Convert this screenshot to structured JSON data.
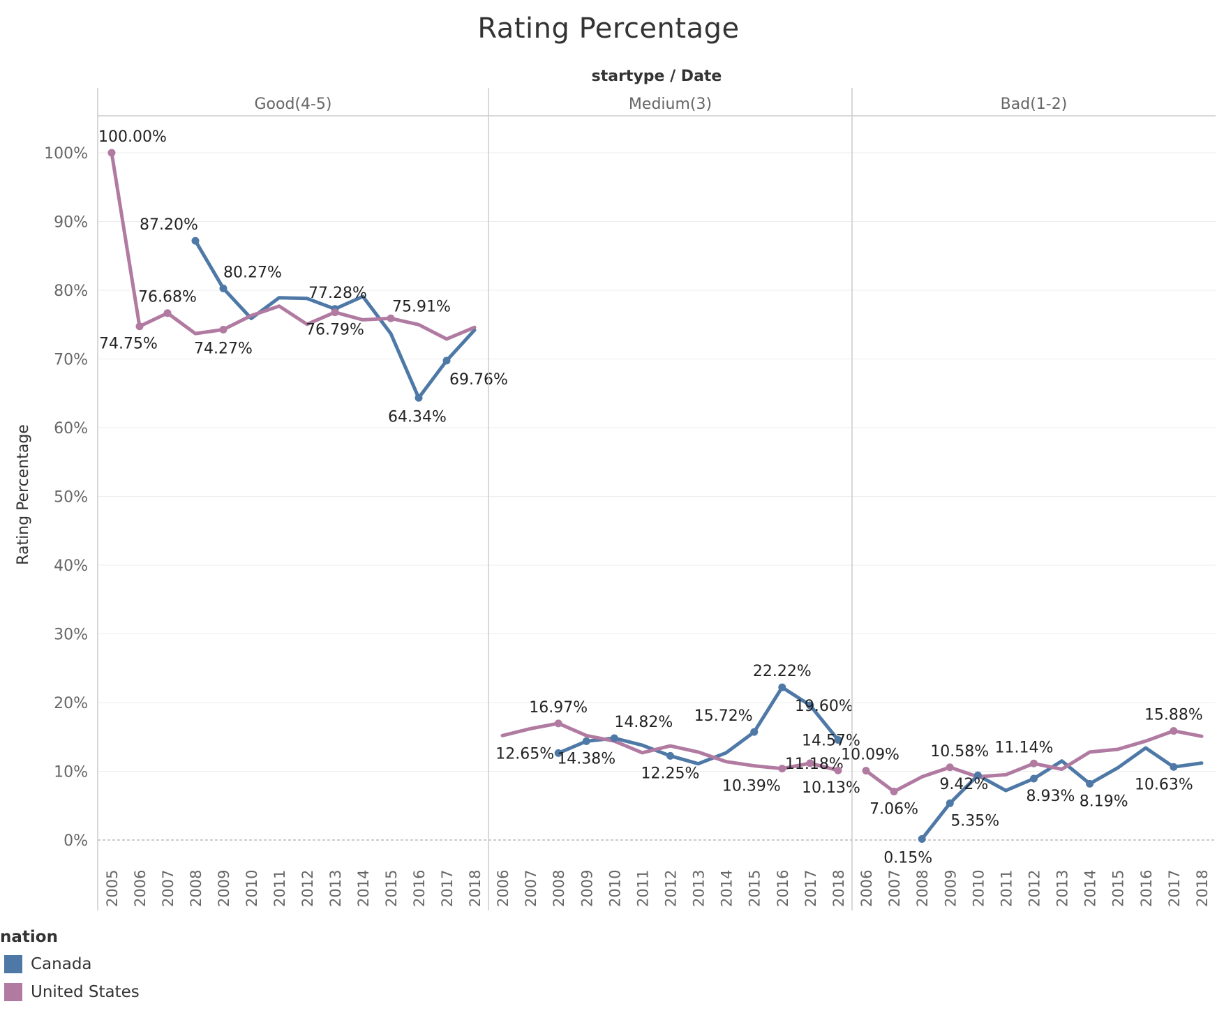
{
  "chart_data": {
    "type": "line",
    "title": "Rating Percentage",
    "column_header": "startype / Date",
    "ylabel": "Rating Percentage",
    "ylim": [
      0,
      1.05
    ],
    "y_ticks": [
      "0%",
      "10%",
      "20%",
      "30%",
      "40%",
      "50%",
      "60%",
      "70%",
      "80%",
      "90%",
      "100%"
    ],
    "legend": {
      "title": "nation",
      "position": "bottom-left"
    },
    "colors": {
      "Canada": "#4e79a7",
      "United States": "#b07aa1"
    },
    "panels": [
      {
        "name": "Good(4-5)",
        "x": [
          "2005",
          "2006",
          "2007",
          "2008",
          "2009",
          "2010",
          "2011",
          "2012",
          "2013",
          "2014",
          "2015",
          "2016",
          "2017",
          "2018"
        ],
        "series": [
          {
            "name": "Canada",
            "values": [
              null,
              null,
              null,
              0.872,
              0.8027,
              0.759,
              0.789,
              0.788,
              0.7728,
              0.791,
              0.737,
              0.6434,
              0.6976,
              0.742
            ]
          },
          {
            "name": "United States",
            "values": [
              1.0,
              0.7475,
              0.7668,
              0.737,
              0.7427,
              0.763,
              0.777,
              0.7505,
              0.7679,
              0.757,
              0.7591,
              0.75,
              0.729,
              0.746
            ]
          }
        ],
        "labels": [
          {
            "series": "United States",
            "i": 0,
            "text": "100.00%",
            "dx": 30,
            "dy": -24
          },
          {
            "series": "Canada",
            "i": 3,
            "text": "87.20%",
            "dx": -38,
            "dy": -24
          },
          {
            "series": "Canada",
            "i": 4,
            "text": "80.27%",
            "dx": 42,
            "dy": -24
          },
          {
            "series": "Canada",
            "i": 8,
            "text": "77.28%",
            "dx": 4,
            "dy": -24
          },
          {
            "series": "United States",
            "i": 15,
            "text": "",
            "dx": 0,
            "dy": 0
          },
          {
            "series": "United States",
            "i": 1,
            "text": "74.75%",
            "dx": -16,
            "dy": 24
          },
          {
            "series": "United States",
            "i": 2,
            "text": "76.68%",
            "dx": 0,
            "dy": -24
          },
          {
            "series": "United States",
            "i": 4,
            "text": "74.27%",
            "dx": 0,
            "dy": 26
          },
          {
            "series": "United States",
            "i": 8,
            "text": "76.79%",
            "dx": 0,
            "dy": 24
          },
          {
            "series": "United States",
            "i": 10,
            "text": "75.91%",
            "dx": 44,
            "dy": -18
          },
          {
            "series": "Canada",
            "i": 11,
            "text": "64.34%",
            "dx": -2,
            "dy": 26
          },
          {
            "series": "Canada",
            "i": 12,
            "text": "69.76%",
            "dx": 46,
            "dy": 26
          }
        ]
      },
      {
        "name": "Medium(3)",
        "x": [
          "2006",
          "2007",
          "2008",
          "2009",
          "2010",
          "2011",
          "2012",
          "2013",
          "2014",
          "2015",
          "2016",
          "2017",
          "2018"
        ],
        "series": [
          {
            "name": "Canada",
            "values": [
              null,
              null,
              0.1265,
              0.1438,
              0.1482,
              0.138,
              0.1225,
              0.111,
              0.127,
              0.1572,
              0.2222,
              0.196,
              0.1457
            ]
          },
          {
            "name": "United States",
            "values": [
              0.152,
              0.162,
              0.1697,
              0.152,
              0.144,
              0.127,
              0.137,
              0.128,
              0.114,
              0.108,
              0.1039,
              0.1118,
              0.1013
            ]
          }
        ],
        "labels": [
          {
            "series": "United States",
            "i": 2,
            "text": "16.97%",
            "dx": 0,
            "dy": -24
          },
          {
            "series": "Canada",
            "i": 2,
            "text": "12.65%",
            "dx": -48,
            "dy": 0
          },
          {
            "series": "Canada",
            "i": 3,
            "text": "14.38%",
            "dx": 0,
            "dy": 24
          },
          {
            "series": "Canada",
            "i": 4,
            "text": "14.82%",
            "dx": 42,
            "dy": -24
          },
          {
            "series": "Canada",
            "i": 6,
            "text": "12.25%",
            "dx": 0,
            "dy": 24
          },
          {
            "series": "Canada",
            "i": 9,
            "text": "15.72%",
            "dx": -44,
            "dy": -24
          },
          {
            "series": "Canada",
            "i": 10,
            "text": "22.22%",
            "dx": 0,
            "dy": -24
          },
          {
            "series": "Canada",
            "i": 11,
            "text": "19.60%",
            "dx": 20,
            "dy": 0
          },
          {
            "series": "Canada",
            "i": 12,
            "text": "14.57%",
            "dx": -10,
            "dy": 0
          },
          {
            "series": "United States",
            "i": 11,
            "text": "11.18%",
            "dx": 6,
            "dy": 0
          },
          {
            "series": "United States",
            "i": 10,
            "text": "10.39%",
            "dx": -44,
            "dy": 24
          },
          {
            "series": "United States",
            "i": 12,
            "text": "10.13%",
            "dx": -10,
            "dy": 24
          }
        ]
      },
      {
        "name": "Bad(1-2)",
        "x": [
          "2006",
          "2007",
          "2008",
          "2009",
          "2010",
          "2011",
          "2012",
          "2013",
          "2014",
          "2015",
          "2016",
          "2017",
          "2018"
        ],
        "series": [
          {
            "name": "Canada",
            "values": [
              null,
              null,
              0.0015,
              0.0535,
              0.0942,
              0.072,
              0.0893,
              0.115,
              0.0819,
              0.105,
              0.134,
              0.1063,
              0.112
            ]
          },
          {
            "name": "United States",
            "values": [
              0.1009,
              0.0706,
              0.092,
              0.1058,
              0.092,
              0.095,
              0.1114,
              0.103,
              0.128,
              0.132,
              0.144,
              0.1588,
              0.151
            ]
          }
        ],
        "labels": [
          {
            "series": "United States",
            "i": 0,
            "text": "10.09%",
            "dx": 6,
            "dy": -24
          },
          {
            "series": "United States",
            "i": 1,
            "text": "7.06%",
            "dx": 0,
            "dy": 24
          },
          {
            "series": "Canada",
            "i": 2,
            "text": "0.15%",
            "dx": -20,
            "dy": 26
          },
          {
            "series": "United States",
            "i": 3,
            "text": "10.58%",
            "dx": 14,
            "dy": -24
          },
          {
            "series": "Canada",
            "i": 3,
            "text": "5.35%",
            "dx": 36,
            "dy": 24
          },
          {
            "series": "Canada",
            "i": 4,
            "text": "9.42%",
            "dx": -20,
            "dy": 12
          },
          {
            "series": "United States",
            "i": 6,
            "text": "11.14%",
            "dx": -14,
            "dy": -24
          },
          {
            "series": "Canada",
            "i": 6,
            "text": "8.93%",
            "dx": 24,
            "dy": 24
          },
          {
            "series": "Canada",
            "i": 8,
            "text": "8.19%",
            "dx": 20,
            "dy": 24
          },
          {
            "series": "United States",
            "i": 11,
            "text": "15.88%",
            "dx": 0,
            "dy": -24
          },
          {
            "series": "Canada",
            "i": 11,
            "text": "10.63%",
            "dx": -14,
            "dy": 24
          }
        ]
      }
    ]
  }
}
